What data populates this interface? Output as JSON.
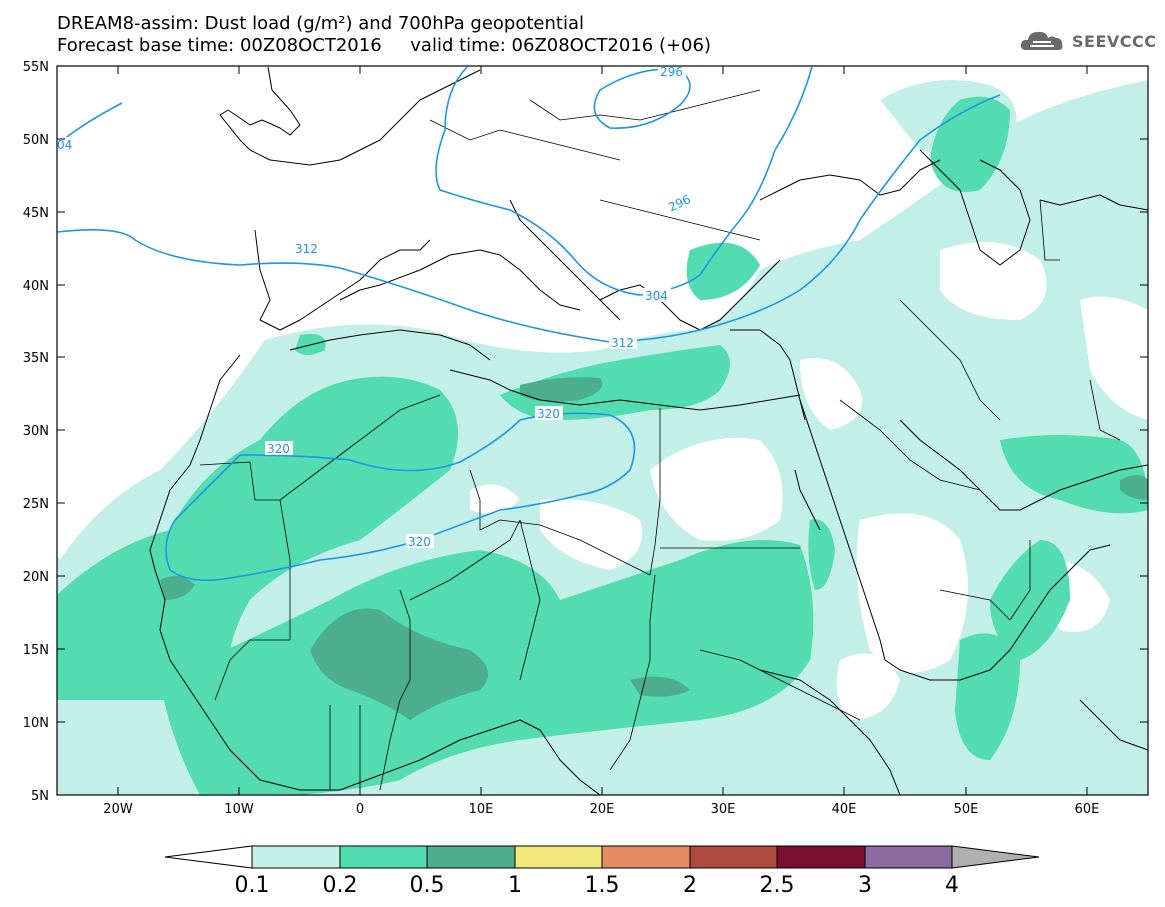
{
  "title": {
    "line1": "DREAM8-assim: Dust load (g/m²) and 700hPa geopotential",
    "line2": "Forecast base time: 00Z08OCT2016     valid time: 06Z08OCT2016 (+06)"
  },
  "logo": {
    "text": "SEEVCCC",
    "icon": "cloud-icon"
  },
  "map": {
    "lon_range": [
      -25,
      65
    ],
    "lat_range": [
      5,
      55
    ],
    "lat_ticks": [
      "55N",
      "50N",
      "45N",
      "40N",
      "35N",
      "30N",
      "25N",
      "20N",
      "15N",
      "10N",
      "5N"
    ],
    "lon_ticks": [
      "20W",
      "10W",
      "0",
      "10E",
      "20E",
      "30E",
      "40E",
      "50E",
      "60E"
    ]
  },
  "contours": {
    "color": "#1e96e6",
    "labels": [
      "04",
      "296",
      "296",
      "312",
      "304",
      "312",
      "320",
      "320",
      "320"
    ]
  },
  "colorbar": {
    "colors": [
      "#c2f0e8",
      "#52dcb0",
      "#4dae8e",
      "#f2e87a",
      "#e58c65",
      "#ae4a3e",
      "#7a1030",
      "#8c6aa0"
    ],
    "end_colors": [
      "#ffffff",
      "#b0b0b0"
    ],
    "labels": [
      "0.1",
      "0.2",
      "0.5",
      "1",
      "1.5",
      "2",
      "2.5",
      "3",
      "4"
    ]
  }
}
